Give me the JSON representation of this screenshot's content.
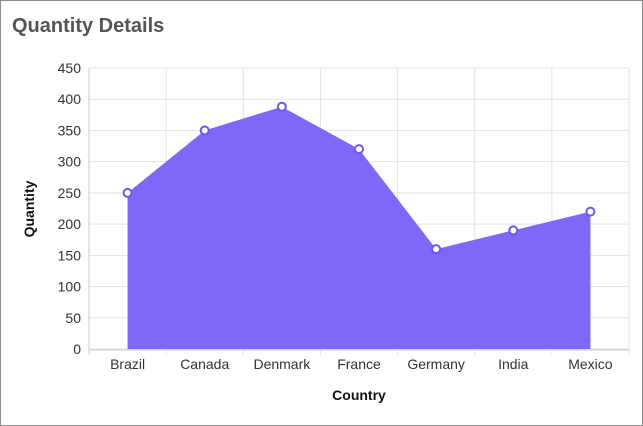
{
  "chart_data": {
    "type": "area",
    "title": "Quantity Details",
    "xlabel": "Country",
    "ylabel": "Quantity",
    "categories": [
      "Brazil",
      "Canada",
      "Denmark",
      "France",
      "Germany",
      "India",
      "Mexico"
    ],
    "series": [
      {
        "values": [
          250,
          350,
          388,
          320,
          160,
          190,
          220
        ]
      }
    ],
    "ylim": [
      0,
      450
    ],
    "yticks": [
      "0",
      "50",
      "100",
      "150",
      "200",
      "250",
      "300",
      "350",
      "400",
      "450"
    ],
    "grid": true,
    "legend": "none",
    "colors": {
      "area": "#8167f7",
      "marker_fill": "#ffffff",
      "marker_stroke": "#7055f0",
      "grid": "#e3e3e3"
    }
  }
}
